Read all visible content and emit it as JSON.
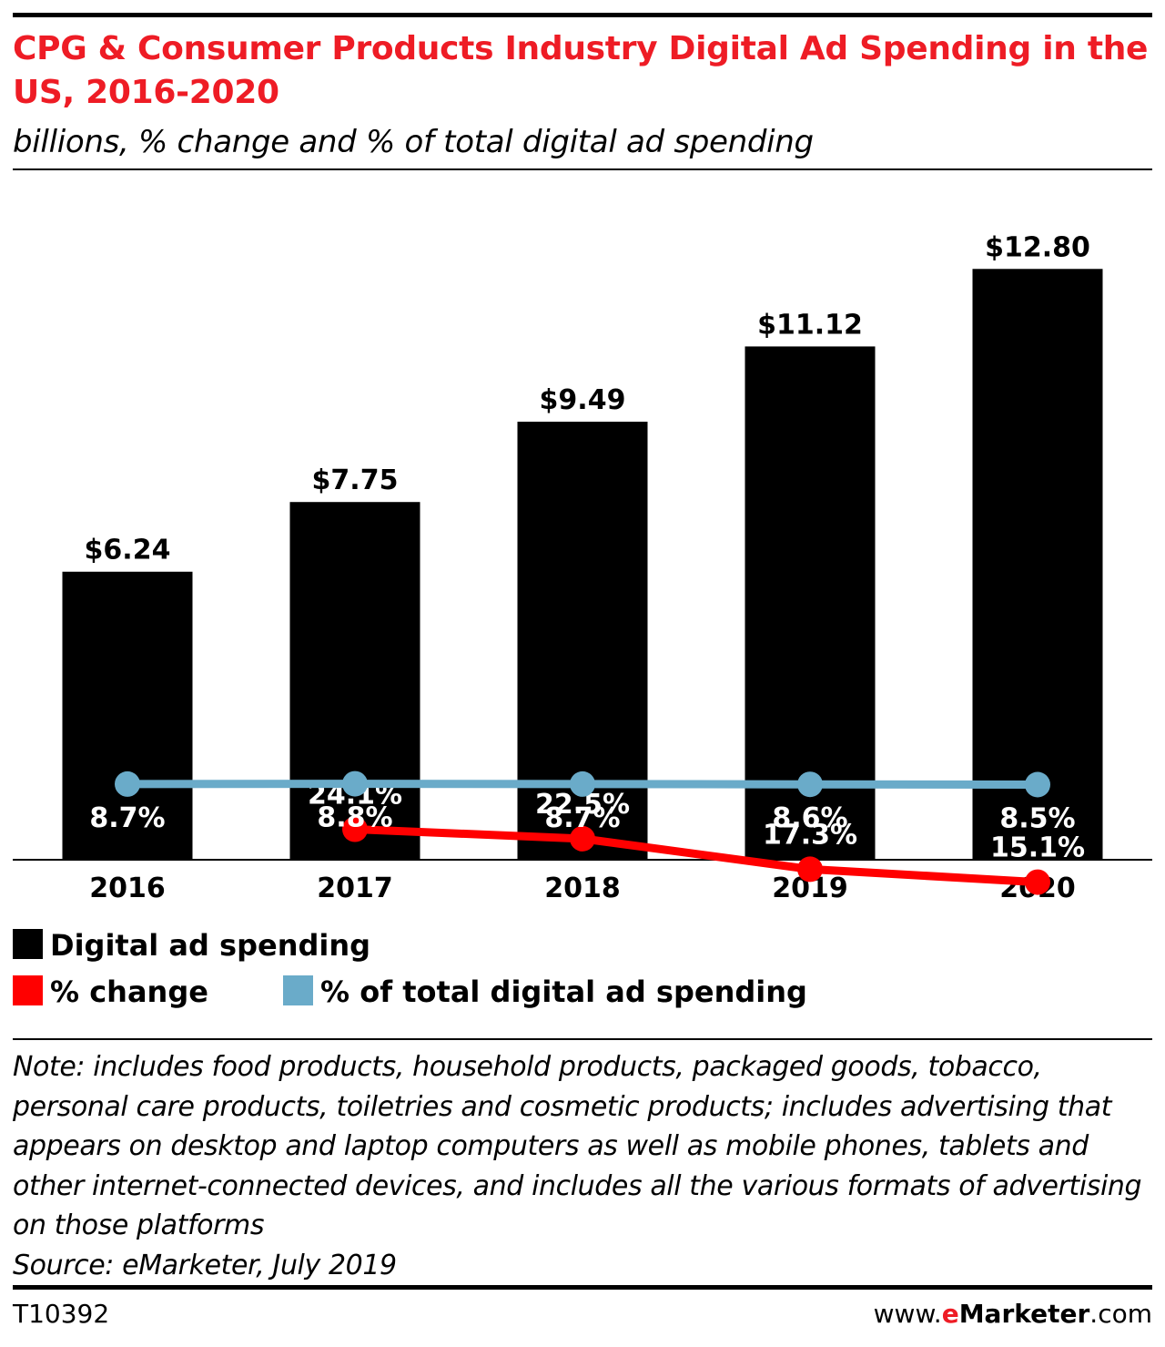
{
  "chart_data": {
    "type": "bar",
    "title": "CPG & Consumer Products Industry Digital Ad Spending in the US, 2016-2020",
    "subtitle": "billions, % change and % of total digital ad spending",
    "categories": [
      "2016",
      "2017",
      "2018",
      "2019",
      "2020"
    ],
    "series": [
      {
        "name": "Digital ad spending",
        "kind": "bar",
        "values": [
          6.24,
          7.75,
          9.49,
          11.12,
          12.8
        ],
        "labels": [
          "$6.24",
          "$7.75",
          "$9.49",
          "$11.12",
          "$12.80"
        ],
        "color": "#000000"
      },
      {
        "name": "% change",
        "kind": "line",
        "values": [
          null,
          24.1,
          22.5,
          17.3,
          15.1
        ],
        "labels": [
          "",
          "24.1%",
          "22.5%",
          "17.3%",
          "15.1%"
        ],
        "color": "#ff0000"
      },
      {
        "name": "% of total digital ad spending",
        "kind": "line",
        "values": [
          8.7,
          8.8,
          8.7,
          8.6,
          8.5
        ],
        "labels": [
          "8.7%",
          "8.8%",
          "8.7%",
          "8.6%",
          "8.5%"
        ],
        "color": "#6aabc9"
      }
    ],
    "xlabel": "",
    "ylabel": "",
    "ylim": [
      0,
      13.2
    ],
    "grid": false,
    "legend": "bottom-left"
  },
  "notes": {
    "note": "Note: includes food products, household products, packaged goods, tobacco, personal care products, toiletries and cosmetic products; includes advertising that appears on desktop and laptop computers as well as mobile phones, tablets and other internet-connected devices, and includes all the various formats of advertising on those platforms",
    "source": "Source: eMarketer, July 2019"
  },
  "footer": {
    "chart_id": "T10392",
    "brand_prefix": "www.",
    "brand_e": "e",
    "brand_name": "Marketer",
    "brand_suffix": ".com"
  },
  "colors": {
    "title": "#ee1c25",
    "accent_red": "#ff0000",
    "accent_blue": "#6aabc9"
  }
}
